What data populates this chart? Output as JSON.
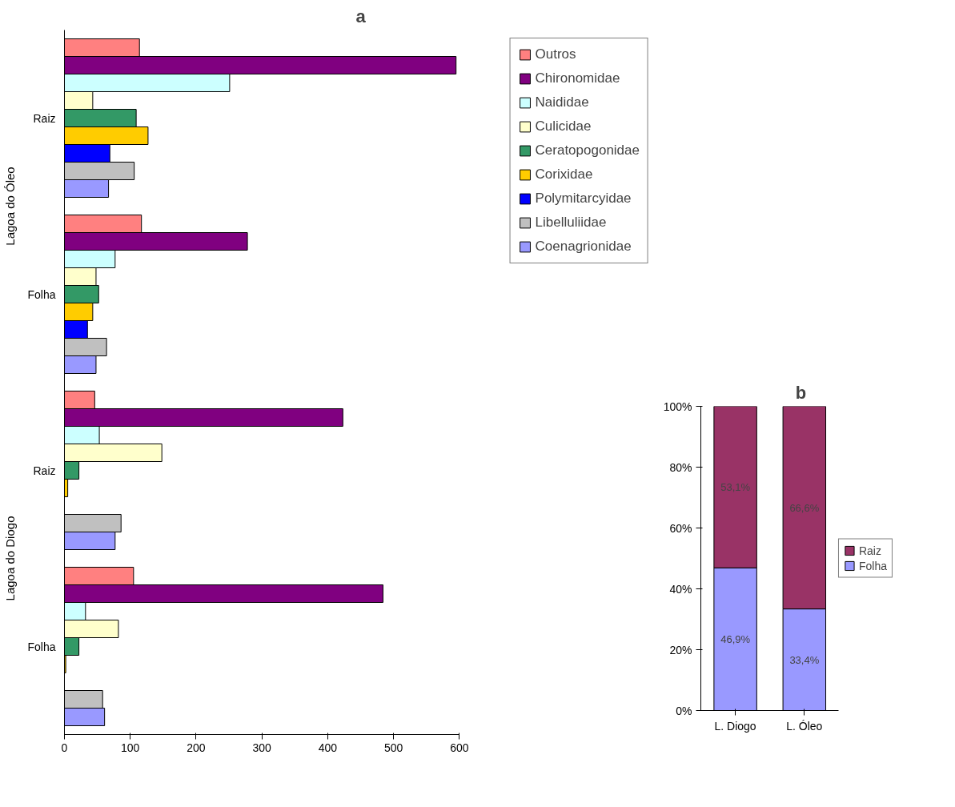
{
  "chart_data": [
    {
      "type": "bar",
      "title": "a",
      "orientation": "horizontal",
      "categories": [
        "Raiz",
        "Folha",
        "Raiz",
        "Folha"
      ],
      "series": [
        {
          "name": "Outros",
          "color": "#ff8080",
          "values": [
            114,
            117,
            46,
            105
          ]
        },
        {
          "name": "Chironomidae",
          "color": "#800080",
          "values": [
            595,
            278,
            423,
            484
          ]
        },
        {
          "name": "Naididae",
          "color": "#ccffff",
          "values": [
            251,
            77,
            53,
            32
          ]
        },
        {
          "name": "Culicidae",
          "color": "#ffffcc",
          "values": [
            43,
            48,
            148,
            82
          ]
        },
        {
          "name": "Ceratopogonidae",
          "color": "#339966",
          "values": [
            109,
            52,
            22,
            22
          ]
        },
        {
          "name": "Corixidae",
          "color": "#ffcc00",
          "values": [
            127,
            43,
            5,
            2
          ]
        },
        {
          "name": "Polymitarcyidae",
          "color": "#0000ff",
          "values": [
            69,
            35,
            null,
            null
          ]
        },
        {
          "name": "Libelluliidae",
          "color": "#c0c0c0",
          "values": [
            106,
            64,
            86,
            58
          ]
        },
        {
          "name": "Coenagrionidae",
          "color": "#9999ff",
          "values": [
            67,
            48,
            77,
            61
          ]
        }
      ],
      "xlim": [
        0,
        600
      ],
      "xticks": [
        0,
        100,
        200,
        300,
        400,
        500,
        600
      ],
      "grid": false,
      "legend": "right",
      "annotations": [
        "Lagoa do Óleo",
        "Lagoa do Diogo"
      ]
    },
    {
      "type": "bar",
      "title": "b",
      "stacked": true,
      "categories": [
        "L. Diogo",
        "L. Óleo"
      ],
      "series": [
        {
          "name": "Folha",
          "color": "#9999ff",
          "values": [
            46.9,
            33.4
          ],
          "value_labels": [
            "46,9%",
            "33,4%"
          ]
        },
        {
          "name": "Raiz",
          "color": "#993366",
          "values": [
            53.1,
            66.6
          ],
          "value_labels": [
            "53,1%",
            "66,6%"
          ]
        }
      ],
      "ylim": [
        0,
        100
      ],
      "yticks": [
        {
          "value": 0,
          "label": "0%"
        },
        {
          "value": 20,
          "label": "20%"
        },
        {
          "value": 40,
          "label": "40%"
        },
        {
          "value": 60,
          "label": "60%"
        },
        {
          "value": 80,
          "label": "80%"
        },
        {
          "value": 100,
          "label": "100%"
        }
      ],
      "grid": false,
      "legend": "right"
    }
  ]
}
